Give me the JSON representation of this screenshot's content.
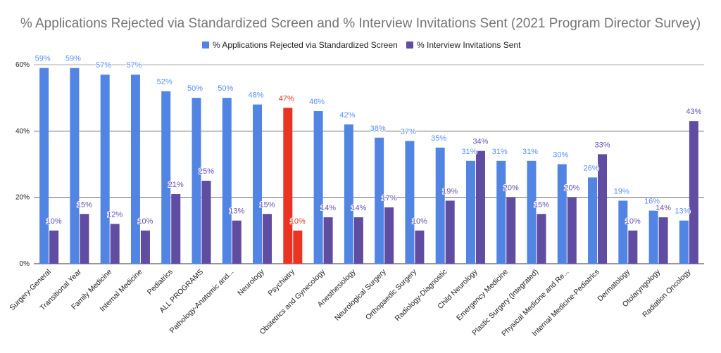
{
  "chart_data": {
    "type": "bar",
    "title": "% Applications Rejected via Standardized Screen and % Interview Invitations Sent (2021 Program Director Survey)",
    "xlabel": "",
    "ylabel": "",
    "ylim": [
      0,
      60
    ],
    "yticks": [
      "0%",
      "20%",
      "40%",
      "60%"
    ],
    "ytick_values": [
      0,
      20,
      40,
      60
    ],
    "grid": true,
    "legend_position": "top",
    "categories": [
      "Surgery-General",
      "Transitional Year",
      "Family Medicine",
      "Internal Medicine",
      "Pediatrics",
      "ALL PROGRAMS",
      "Pathology-Anatomic and...",
      "Neurology",
      "Psychiatry",
      "Obstetrics and Gynecology",
      "Anesthesiology",
      "Neurological Surgery",
      "Orthopaedic Surgery",
      "Radiology-Diagnostic",
      "Child Neurology",
      "Emergency Medicine",
      "Plastic Surgery (Integrated)",
      "Physical Medicine and Re...",
      "Internal Medicine-Pediatrics",
      "Dermatology",
      "Otolaryngology",
      "Radiation Oncology"
    ],
    "highlighted_category": "Psychiatry",
    "series": [
      {
        "name": "% Applications Rejected via Standardized Screen",
        "color": "#5285e3",
        "label_color": "#5b8ff0",
        "values": [
          59,
          59,
          57,
          57,
          52,
          50,
          50,
          48,
          47,
          46,
          42,
          38,
          37,
          35,
          31,
          31,
          31,
          30,
          26,
          19,
          16,
          13
        ]
      },
      {
        "name": "% Interview Invitations Sent",
        "color": "#604ca1",
        "label_color": "#6a50b3",
        "values": [
          10,
          15,
          12,
          10,
          21,
          25,
          13,
          15,
          10,
          14,
          14,
          17,
          10,
          19,
          34,
          20,
          15,
          20,
          33,
          10,
          14,
          43
        ]
      }
    ],
    "highlight_color": "#ea3323"
  }
}
